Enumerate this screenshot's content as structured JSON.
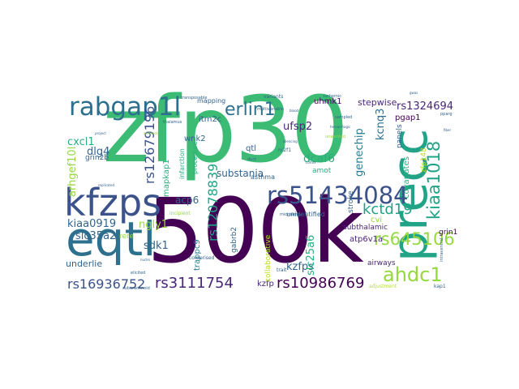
{
  "words": {
    "zfp30": "zfp30",
    "w500k": "500k",
    "kfzps": "kfzps",
    "eqtl": "eqtl",
    "precc": "precc",
    "rs51434084": "rs51434084",
    "rabgap1l": "rabgap1l",
    "erlin1": "erlin1",
    "ahdc1": "ahdc1",
    "rs645106": "rs645106",
    "kiaa1018": "kiaa1018",
    "rs10986769": "rs10986769",
    "rs3111754": "rs3111754",
    "rs16936752": "rs16936752",
    "kctd19": "kctd19",
    "rs12679196": "rs12679196",
    "rs12078839": "rs12078839",
    "rs1324694": "rs1324694",
    "genechip": "genechip",
    "arhgef10l": "arhgef10l",
    "cxcl1": "cxcl1",
    "dlg4": "dlg4",
    "kiaa0919": "kiaa0919",
    "slc35a2": "slc35a2",
    "nngly1": "ngly1",
    "underlie": "underlie",
    "sdk1": "sdk1",
    "kzfps": "kzfps",
    "dcaf6": "dcaf6",
    "ufsp2": "ufsp2",
    "substania": "substania",
    "kcnq3": "kcnq3",
    "acp6": "acp6",
    "slc25a6": "slc25a6",
    "covariates": "covariates",
    "stepwise": "stepwise",
    "uhmk1": "uhmk1",
    "pgap1": "pgap1",
    "itm2c": "itm2c",
    "wnk2": "wnk2",
    "qtl": "qtl",
    "mapkap1": "mapkap1",
    "grin2b": "grin2b",
    "trappc9": "trappc9",
    "gabrb2": "gabrb2",
    "kzfp": "kzfp",
    "atp6v1a": "atp6v1a",
    "airways": "airways",
    "grin1": "grin1",
    "amot": "amot",
    "cvi": "cvi",
    "subthalamic": "subthalamic",
    "stroke": "stroke",
    "panels": "panels",
    "unidentified": "unidentified",
    "collaborative": "collaborative",
    "asthma": "asthma",
    "mapping": "mapping",
    "variants": "variants",
    "infarction": "infarction",
    "procedure": "procedure",
    "rere": "rere",
    "zfp148": "zfp148",
    "adjustment": "adjustment",
    "nr2f1": "nr2f1",
    "comprised": "comprised",
    "incipient": "incipient",
    "ischemic": "ischemic",
    "duct": "duct",
    "kap1": "kap1",
    "trait": "trait",
    "subarachnoid": "subarachnoid",
    "pparg": "pparg",
    "multivariable": "multivariable",
    "unwanted": "unwanted",
    "elicited": "elicited",
    "microarray": "microarray",
    "transposable": "transposable",
    "sampled": "sampled",
    "thalamus": "thalamus",
    "hemorrhagic": "hemorrhagic",
    "silencing": "silencing",
    "wetlands": "wetlands",
    "replicated": "replicated",
    "intraventral": "intraventral",
    "gwas": "gwas",
    "nuclei": "nuclei",
    "project": "project",
    "fiber": "fiber",
    "cortex": "cortex",
    "blood": "blood"
  }
}
